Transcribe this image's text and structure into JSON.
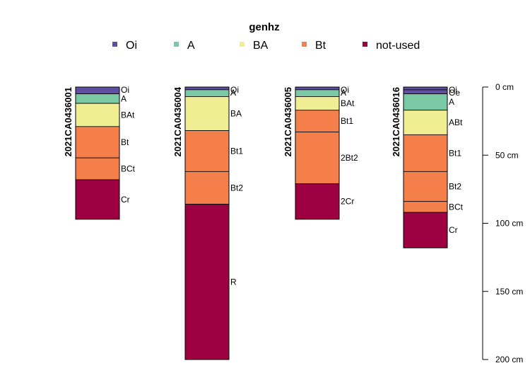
{
  "chart_data": {
    "type": "bar",
    "legend": {
      "title": "genhz",
      "placement": "top",
      "entries": [
        {
          "label": "Oi",
          "color": "#5E4FA2"
        },
        {
          "label": "A",
          "color": "#7AC9A4"
        },
        {
          "label": "BA",
          "color": "#EFEE93"
        },
        {
          "label": "Bt",
          "color": "#F57F4B"
        },
        {
          "label": "not-used",
          "color": "#9E0142"
        }
      ]
    },
    "depth_axis": {
      "unit": "cm",
      "range": [
        0,
        200
      ],
      "ticks": [
        {
          "value": 0,
          "label": "0 cm"
        },
        {
          "value": 50,
          "label": "50 cm"
        },
        {
          "value": 100,
          "label": "100 cm"
        },
        {
          "value": 150,
          "label": "150 cm"
        },
        {
          "value": 200,
          "label": "200 cm"
        }
      ]
    },
    "profiles": [
      {
        "id": "2021CA0436001",
        "horizons": [
          {
            "name": "Oi",
            "top": 0,
            "bottom": 5,
            "genhz": "Oi"
          },
          {
            "name": "A",
            "top": 5,
            "bottom": 12,
            "genhz": "A"
          },
          {
            "name": "BAt",
            "top": 12,
            "bottom": 29,
            "genhz": "BA"
          },
          {
            "name": "Bt",
            "top": 29,
            "bottom": 52,
            "genhz": "Bt"
          },
          {
            "name": "BCt",
            "top": 52,
            "bottom": 68,
            "genhz": "Bt"
          },
          {
            "name": "Cr",
            "top": 68,
            "bottom": 97,
            "genhz": "not-used"
          }
        ]
      },
      {
        "id": "2021CA0436004",
        "horizons": [
          {
            "name": "Oi",
            "top": 0,
            "bottom": 2,
            "genhz": "Oi"
          },
          {
            "name": "A",
            "top": 2,
            "bottom": 7,
            "genhz": "A"
          },
          {
            "name": "BA",
            "top": 7,
            "bottom": 32,
            "genhz": "BA"
          },
          {
            "name": "Bt1",
            "top": 32,
            "bottom": 62,
            "genhz": "Bt"
          },
          {
            "name": "Bt2",
            "top": 62,
            "bottom": 86,
            "genhz": "Bt"
          },
          {
            "name": "R",
            "top": 86,
            "bottom": 200,
            "genhz": "not-used"
          }
        ]
      },
      {
        "id": "2021CA0436005",
        "horizons": [
          {
            "name": "Oi",
            "top": 0,
            "bottom": 2,
            "genhz": "Oi"
          },
          {
            "name": "A",
            "top": 2,
            "bottom": 7,
            "genhz": "A"
          },
          {
            "name": "BAt",
            "top": 7,
            "bottom": 17,
            "genhz": "BA"
          },
          {
            "name": "Bt1",
            "top": 17,
            "bottom": 33,
            "genhz": "Bt"
          },
          {
            "name": "2Bt2",
            "top": 33,
            "bottom": 71,
            "genhz": "Bt"
          },
          {
            "name": "2Cr",
            "top": 71,
            "bottom": 97,
            "genhz": "not-used"
          }
        ]
      },
      {
        "id": "2021CA0436016",
        "horizons": [
          {
            "name": "Oi",
            "top": 0,
            "bottom": 2,
            "genhz": "Oi"
          },
          {
            "name": "Oe",
            "top": 2,
            "bottom": 5,
            "genhz": "Oi"
          },
          {
            "name": "A",
            "top": 5,
            "bottom": 17,
            "genhz": "A"
          },
          {
            "name": "ABt",
            "top": 17,
            "bottom": 35,
            "genhz": "BA"
          },
          {
            "name": "Bt1",
            "top": 35,
            "bottom": 62,
            "genhz": "Bt"
          },
          {
            "name": "Bt2",
            "top": 62,
            "bottom": 84,
            "genhz": "Bt"
          },
          {
            "name": "BCt",
            "top": 84,
            "bottom": 92,
            "genhz": "Bt"
          },
          {
            "name": "Cr",
            "top": 92,
            "bottom": 118,
            "genhz": "not-used"
          }
        ]
      }
    ]
  }
}
